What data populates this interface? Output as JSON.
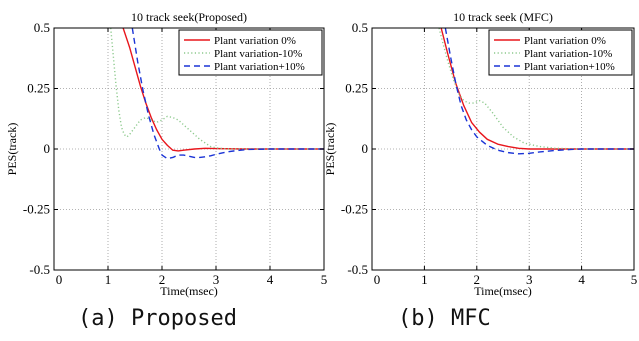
{
  "panels": [
    {
      "caption": "(a) Proposed",
      "chart_data": {
        "type": "line",
        "title": "10 track seek(Proposed)",
        "xlabel": "Time(msec)",
        "ylabel": "PES(track)",
        "xlim": [
          0,
          5
        ],
        "ylim": [
          -0.5,
          0.5
        ],
        "xticks": [
          "0",
          "1",
          "2",
          "3",
          "4",
          "5"
        ],
        "yticks": [
          "-0.5",
          "-0.25",
          "0",
          "0.25",
          "0.5"
        ],
        "grid": true,
        "legend_position": "top-right",
        "series": [
          {
            "name": "Plant variation 0%",
            "color": "#e8161c",
            "style": "solid",
            "x": [
              1.28,
              1.4,
              1.5,
              1.6,
              1.7,
              1.8,
              1.9,
              2.0,
              2.1,
              2.2,
              2.3,
              2.4,
              2.6,
              2.8,
              3.0,
              3.5,
              4.0,
              4.5,
              5.0
            ],
            "y": [
              0.5,
              0.42,
              0.34,
              0.26,
              0.19,
              0.13,
              0.08,
              0.04,
              0.015,
              -0.005,
              -0.008,
              -0.005,
              0.0,
              0.003,
              0.002,
              0.0,
              0.0,
              0.0,
              0.0
            ]
          },
          {
            "name": "Plant variation-10%",
            "color": "#8cc98c",
            "style": "dotted",
            "x": [
              1.05,
              1.1,
              1.15,
              1.2,
              1.25,
              1.3,
              1.35,
              1.4,
              1.5,
              1.6,
              1.7,
              1.8,
              1.9,
              2.0,
              2.1,
              2.2,
              2.3,
              2.4,
              2.5,
              2.6,
              2.7,
              2.8,
              2.9,
              3.0,
              3.2,
              3.5,
              4.0,
              4.5,
              5.0
            ],
            "y": [
              0.5,
              0.38,
              0.26,
              0.16,
              0.09,
              0.06,
              0.05,
              0.06,
              0.09,
              0.12,
              0.13,
              0.12,
              0.11,
              0.12,
              0.135,
              0.13,
              0.12,
              0.1,
              0.08,
              0.06,
              0.04,
              0.025,
              0.01,
              0.005,
              0.0,
              0.0,
              0.0,
              0.0,
              0.0
            ]
          },
          {
            "name": "Plant variation+10%",
            "color": "#1a33d6",
            "style": "dashed",
            "x": [
              1.45,
              1.55,
              1.65,
              1.75,
              1.85,
              1.95,
              2.0,
              2.1,
              2.2,
              2.3,
              2.4,
              2.5,
              2.6,
              2.7,
              2.8,
              2.9,
              3.0,
              3.2,
              3.4,
              3.6,
              4.0,
              4.5,
              5.0
            ],
            "y": [
              0.5,
              0.36,
              0.24,
              0.14,
              0.06,
              0.0,
              -0.025,
              -0.04,
              -0.035,
              -0.025,
              -0.025,
              -0.03,
              -0.035,
              -0.035,
              -0.032,
              -0.028,
              -0.022,
              -0.012,
              -0.006,
              -0.002,
              0.0,
              0.0,
              0.0
            ]
          }
        ]
      }
    },
    {
      "caption": "(b) MFC",
      "chart_data": {
        "type": "line",
        "title": "10 track seek (MFC)",
        "xlabel": "Time(msec)",
        "ylabel": "PES(track)",
        "xlim": [
          0,
          5
        ],
        "ylim": [
          -0.5,
          0.5
        ],
        "xticks": [
          "0",
          "1",
          "2",
          "3",
          "4",
          "5"
        ],
        "yticks": [
          "-0.5",
          "-0.25",
          "0",
          "0.25",
          "0.5"
        ],
        "grid": true,
        "legend_position": "top-right",
        "series": [
          {
            "name": "Plant variation 0%",
            "color": "#e8161c",
            "style": "solid",
            "x": [
              1.32,
              1.45,
              1.6,
              1.75,
              1.9,
              2.05,
              2.2,
              2.4,
              2.6,
              2.8,
              3.0,
              3.5,
              4.0,
              4.5,
              5.0
            ],
            "y": [
              0.5,
              0.39,
              0.27,
              0.18,
              0.11,
              0.07,
              0.04,
              0.02,
              0.01,
              0.003,
              0.0,
              0.0,
              0.0,
              0.0,
              0.0
            ]
          },
          {
            "name": "Plant variation-10%",
            "color": "#8cc98c",
            "style": "dotted",
            "x": [
              1.28,
              1.35,
              1.45,
              1.55,
              1.65,
              1.75,
              1.85,
              1.95,
              2.05,
              2.15,
              2.3,
              2.5,
              2.7,
              2.9,
              3.2,
              3.5,
              4.0,
              4.5,
              5.0
            ],
            "y": [
              0.5,
              0.44,
              0.36,
              0.29,
              0.23,
              0.2,
              0.19,
              0.19,
              0.2,
              0.19,
              0.15,
              0.09,
              0.05,
              0.025,
              0.01,
              0.003,
              0.0,
              0.0,
              0.0
            ]
          },
          {
            "name": "Plant variation+10%",
            "color": "#1a33d6",
            "style": "dashed",
            "x": [
              1.4,
              1.5,
              1.6,
              1.7,
              1.8,
              1.9,
              2.0,
              2.2,
              2.4,
              2.6,
              2.8,
              3.0,
              3.2,
              3.5,
              3.8,
              4.0,
              4.5,
              5.0
            ],
            "y": [
              0.5,
              0.38,
              0.27,
              0.18,
              0.12,
              0.08,
              0.05,
              0.015,
              -0.005,
              -0.015,
              -0.02,
              -0.018,
              -0.012,
              -0.006,
              -0.002,
              0.0,
              0.0,
              0.0
            ]
          }
        ]
      }
    }
  ]
}
